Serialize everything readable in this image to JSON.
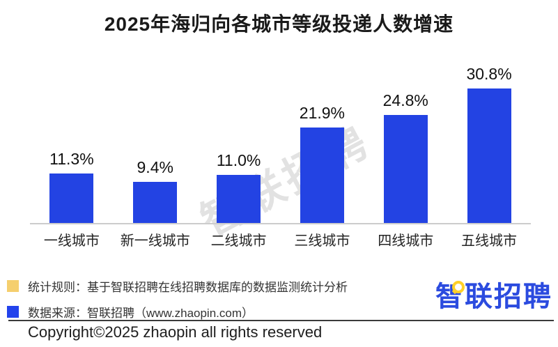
{
  "chart_data": {
    "type": "bar",
    "title": "2025年海归向各城市等级投递人数增速",
    "categories": [
      "一线城市",
      "新一线城市",
      "二线城市",
      "三线城市",
      "四线城市",
      "五线城市"
    ],
    "values": [
      11.3,
      9.4,
      11.0,
      21.9,
      24.8,
      30.8
    ],
    "value_labels": [
      "11.3%",
      "9.4%",
      "11.0%",
      "21.9%",
      "24.8%",
      "30.8%"
    ],
    "xlabel": "",
    "ylabel": "",
    "ylim": [
      0,
      35
    ],
    "grid": false,
    "legend_position": "none",
    "bar_color": "#2343E3",
    "axis_line_color": "#cccccc"
  },
  "watermark": {
    "text": "智联招聘"
  },
  "footer": {
    "legend": [
      {
        "swatch_color": "#F5CF6E",
        "text": "统计规则：基于智联招聘在线招聘数据库的数据监测统计分析"
      },
      {
        "swatch_color": "#2343EC",
        "text": "数据来源：智联招聘（www.zhaopin.com）"
      }
    ],
    "logo_text": "智联招聘",
    "copyright": "Copyright©2025 zhaopin all rights reserved"
  },
  "colors": {
    "bar_blue": "#2343E3",
    "legend_yellow": "#F5CF6E",
    "legend_blue": "#2343EC",
    "logo_blue": "#2B4BDF",
    "logo_yellow": "#FFD028"
  }
}
